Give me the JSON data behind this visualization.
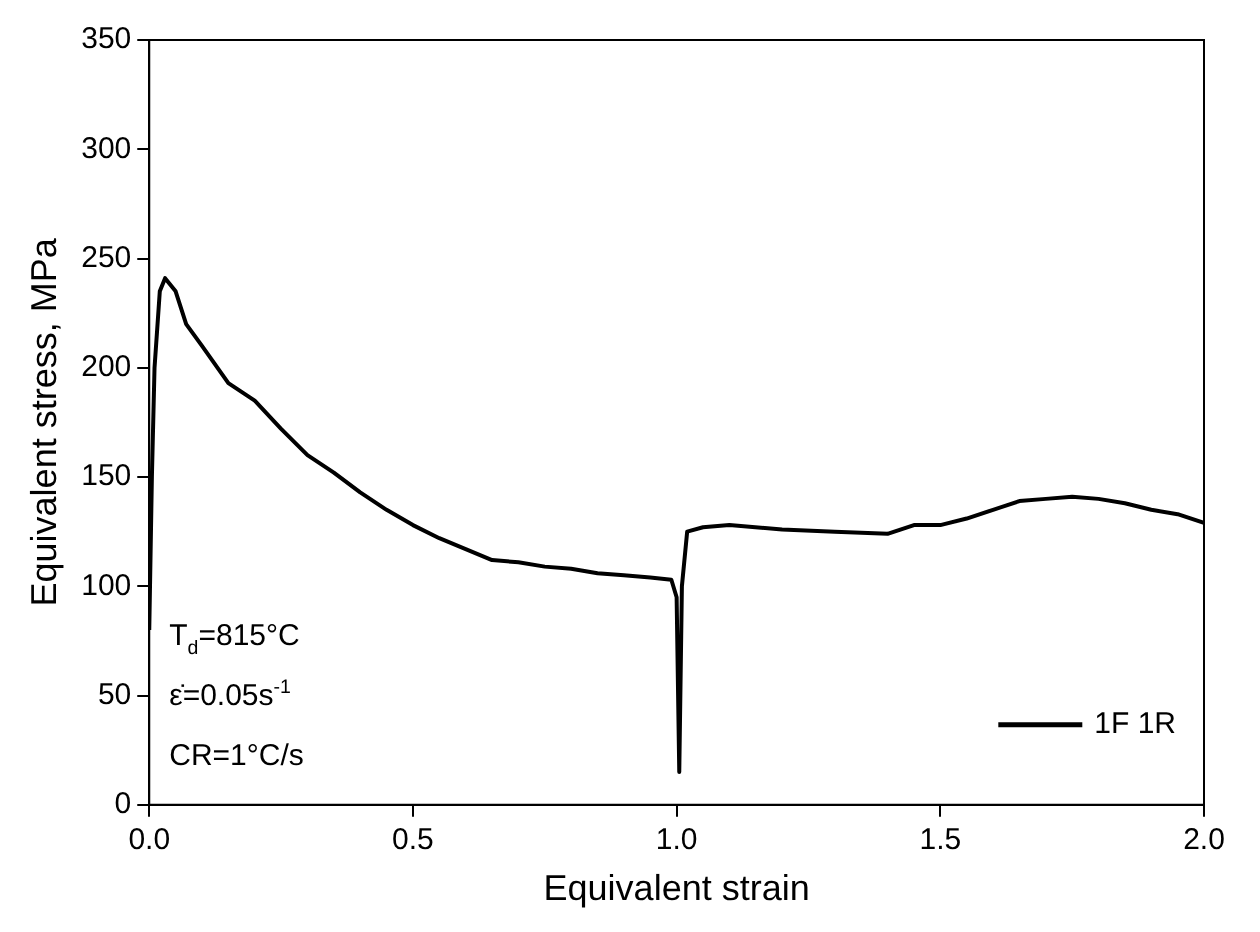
{
  "chart_data": {
    "type": "line",
    "xlabel": "Equivalent strain",
    "ylabel": "Equivalent stress, MPa",
    "x": [
      0,
      0.005,
      0.01,
      0.02,
      0.03,
      0.05,
      0.07,
      0.1,
      0.15,
      0.2,
      0.25,
      0.3,
      0.35,
      0.4,
      0.45,
      0.5,
      0.55,
      0.6,
      0.65,
      0.7,
      0.75,
      0.8,
      0.85,
      0.9,
      0.95,
      0.99,
      1.0,
      1.005,
      1.01,
      1.02,
      1.05,
      1.1,
      1.2,
      1.3,
      1.4,
      1.45,
      1.5,
      1.55,
      1.6,
      1.65,
      1.7,
      1.75,
      1.8,
      1.85,
      1.9,
      1.95,
      2.0
    ],
    "series": [
      {
        "name": "1F 1R",
        "color": "#000000",
        "values": [
          80,
          150,
          200,
          235,
          241,
          235,
          220,
          210,
          193,
          185,
          172,
          160,
          152,
          143,
          135,
          128,
          122,
          117,
          112,
          111,
          109,
          108,
          106,
          105,
          104,
          103,
          95,
          15,
          100,
          125,
          127,
          128,
          126,
          125,
          124,
          128,
          128,
          131,
          135,
          139,
          140,
          141,
          140,
          138,
          135,
          133,
          129
        ]
      }
    ],
    "xlim": [
      0,
      2
    ],
    "xticks": [
      {
        "value": 0,
        "label": "0.0"
      },
      0.5,
      {
        "value": 1,
        "label": "1.0"
      },
      1.5,
      {
        "value": 2,
        "label": "2.0"
      }
    ],
    "ylim": [
      0,
      350
    ],
    "yticks": [
      0,
      50,
      100,
      150,
      200,
      250,
      300,
      350
    ],
    "grid": false,
    "legend": "bottom right",
    "marker": "none",
    "line_style": "solid",
    "annotations": [
      "T$_{d}$=815°C",
      "ε̇=0.05s$^{-1}$",
      "CR=1°C/s"
    ]
  }
}
